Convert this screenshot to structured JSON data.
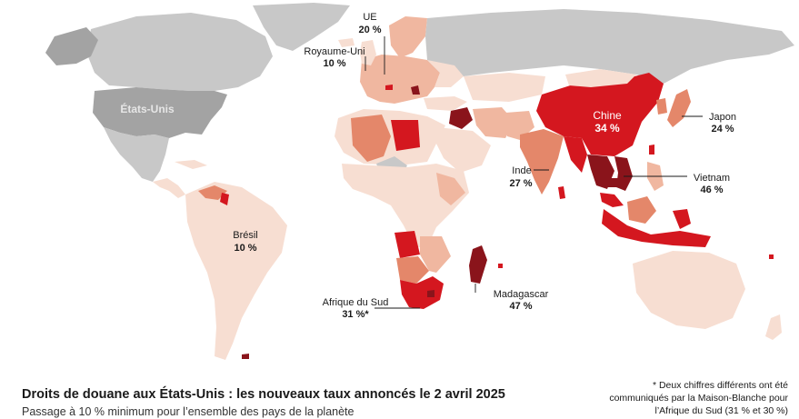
{
  "colors": {
    "ocean": "#ffffff",
    "unaffected": "#c8c8c8",
    "usa": "#a3a3a3",
    "tariff_10": "#f7ded2",
    "tariff_mid": "#f0b7a0",
    "tariff_high": "#e4876a",
    "tariff_very_high": "#d4171f",
    "tariff_max": "#8a141b"
  },
  "map": {
    "usa": {
      "name": "États-Unis"
    },
    "labels": [
      {
        "id": "ue",
        "name": "UE",
        "rate": "20 %"
      },
      {
        "id": "uk",
        "name": "Royaume-Uni",
        "rate": "10 %"
      },
      {
        "id": "china",
        "name": "Chine",
        "rate": "34 %"
      },
      {
        "id": "japan",
        "name": "Japon",
        "rate": "24 %"
      },
      {
        "id": "india",
        "name": "Inde",
        "rate": "27 %"
      },
      {
        "id": "vietnam",
        "name": "Vietnam",
        "rate": "46 %"
      },
      {
        "id": "brazil",
        "name": "Brésil",
        "rate": "10 %"
      },
      {
        "id": "madagascar",
        "name": "Madagascar",
        "rate": "47 %"
      },
      {
        "id": "south_africa",
        "name": "Afrique du Sud",
        "rate": "31 %*"
      }
    ]
  },
  "title": "Droits de douane aux États-Unis : les nouveaux taux annoncés le 2 avril 2025",
  "subtitle": "Passage à 10 % minimum pour l’ensemble des pays de la planète",
  "footnote": "* Deux chiffres différents ont été communiqués par la Maison-Blanche pour l’Afrique du Sud (31 % et 30 %)"
}
